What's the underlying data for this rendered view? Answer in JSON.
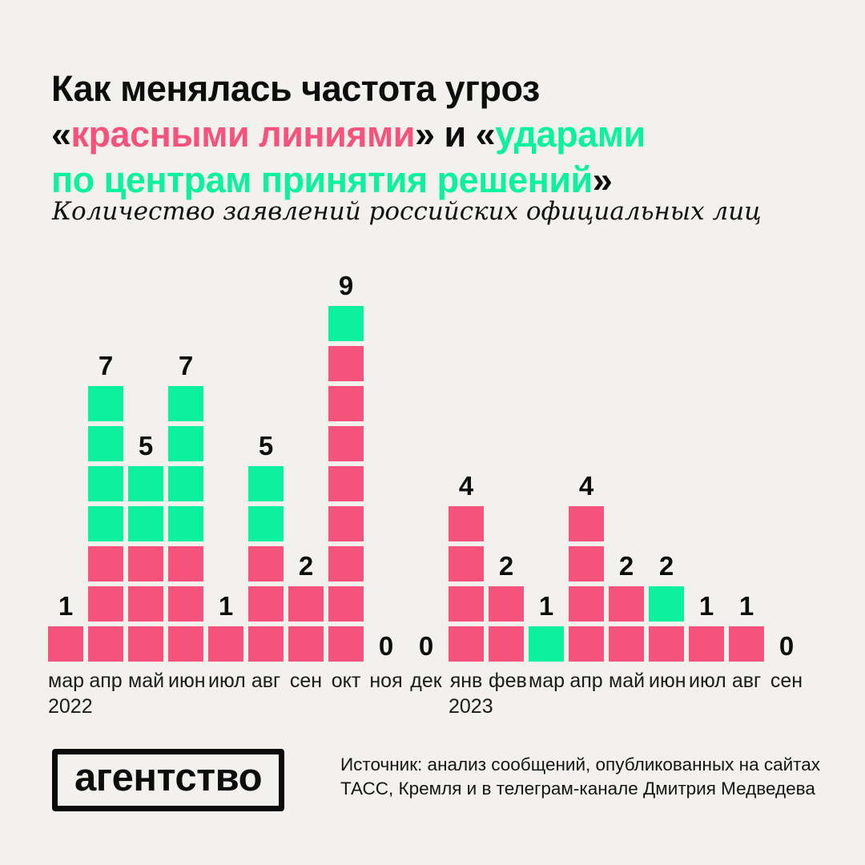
{
  "page": {
    "background": "#f2f1ee"
  },
  "colors": {
    "pink": "#f5537c",
    "green": "#0bf19d",
    "text": "#0d0d0d"
  },
  "title": {
    "segments": [
      {
        "text": "Как менялась частота угроз",
        "color": "black",
        "br": true
      },
      {
        "text": "«",
        "color": "black"
      },
      {
        "text": "красными линиями",
        "color": "pink"
      },
      {
        "text": "» и «",
        "color": "black"
      },
      {
        "text": "ударами",
        "color": "green",
        "br": true
      },
      {
        "text": "по центрам принятия решений",
        "color": "green"
      },
      {
        "text": "»",
        "color": "black"
      }
    ]
  },
  "subtitle": "Количество заявлений российских официальных лиц",
  "chart_data": {
    "type": "bar",
    "subtype": "stacked-unit-squares",
    "title": "Как менялась частота угроз «красными линиями» и «ударами по центрам принятия решений»",
    "ylabel": "Количество заявлений российских официальных лиц",
    "xlabel": "",
    "legend_position": "none",
    "grid": false,
    "value_labels": "above-bars",
    "categories": [
      "мар",
      "апр",
      "май",
      "июн",
      "июл",
      "авг",
      "сен",
      "окт",
      "ноя",
      "дек",
      "янв",
      "фев",
      "мар",
      "апр",
      "май",
      "июн",
      "июл",
      "авг",
      "сен"
    ],
    "year_labels": [
      {
        "label": "2022",
        "column_index": 0
      },
      {
        "label": "2023",
        "column_index": 10
      }
    ],
    "series": [
      {
        "name": "красные линии",
        "color_key": "pink",
        "stack_order": "bottom",
        "values": [
          1,
          3,
          3,
          3,
          1,
          3,
          2,
          8,
          0,
          0,
          4,
          2,
          0,
          4,
          2,
          1,
          1,
          1,
          0
        ]
      },
      {
        "name": "удары по центрам принятия решений",
        "color_key": "green",
        "stack_order": "top",
        "values": [
          0,
          4,
          2,
          4,
          0,
          2,
          0,
          1,
          0,
          0,
          0,
          0,
          1,
          0,
          0,
          1,
          0,
          0,
          0
        ]
      }
    ],
    "totals": [
      1,
      7,
      5,
      7,
      1,
      5,
      2,
      9,
      0,
      0,
      4,
      2,
      1,
      4,
      2,
      2,
      1,
      1,
      0
    ],
    "ylim": [
      0,
      9
    ]
  },
  "footer": {
    "logo_text": "агентство",
    "source_line1": "Источник: анализ сообщений, опубликованных на сайтах",
    "source_line2": "ТАСС, Кремля и в телеграм-канале Дмитрия Медведева"
  }
}
